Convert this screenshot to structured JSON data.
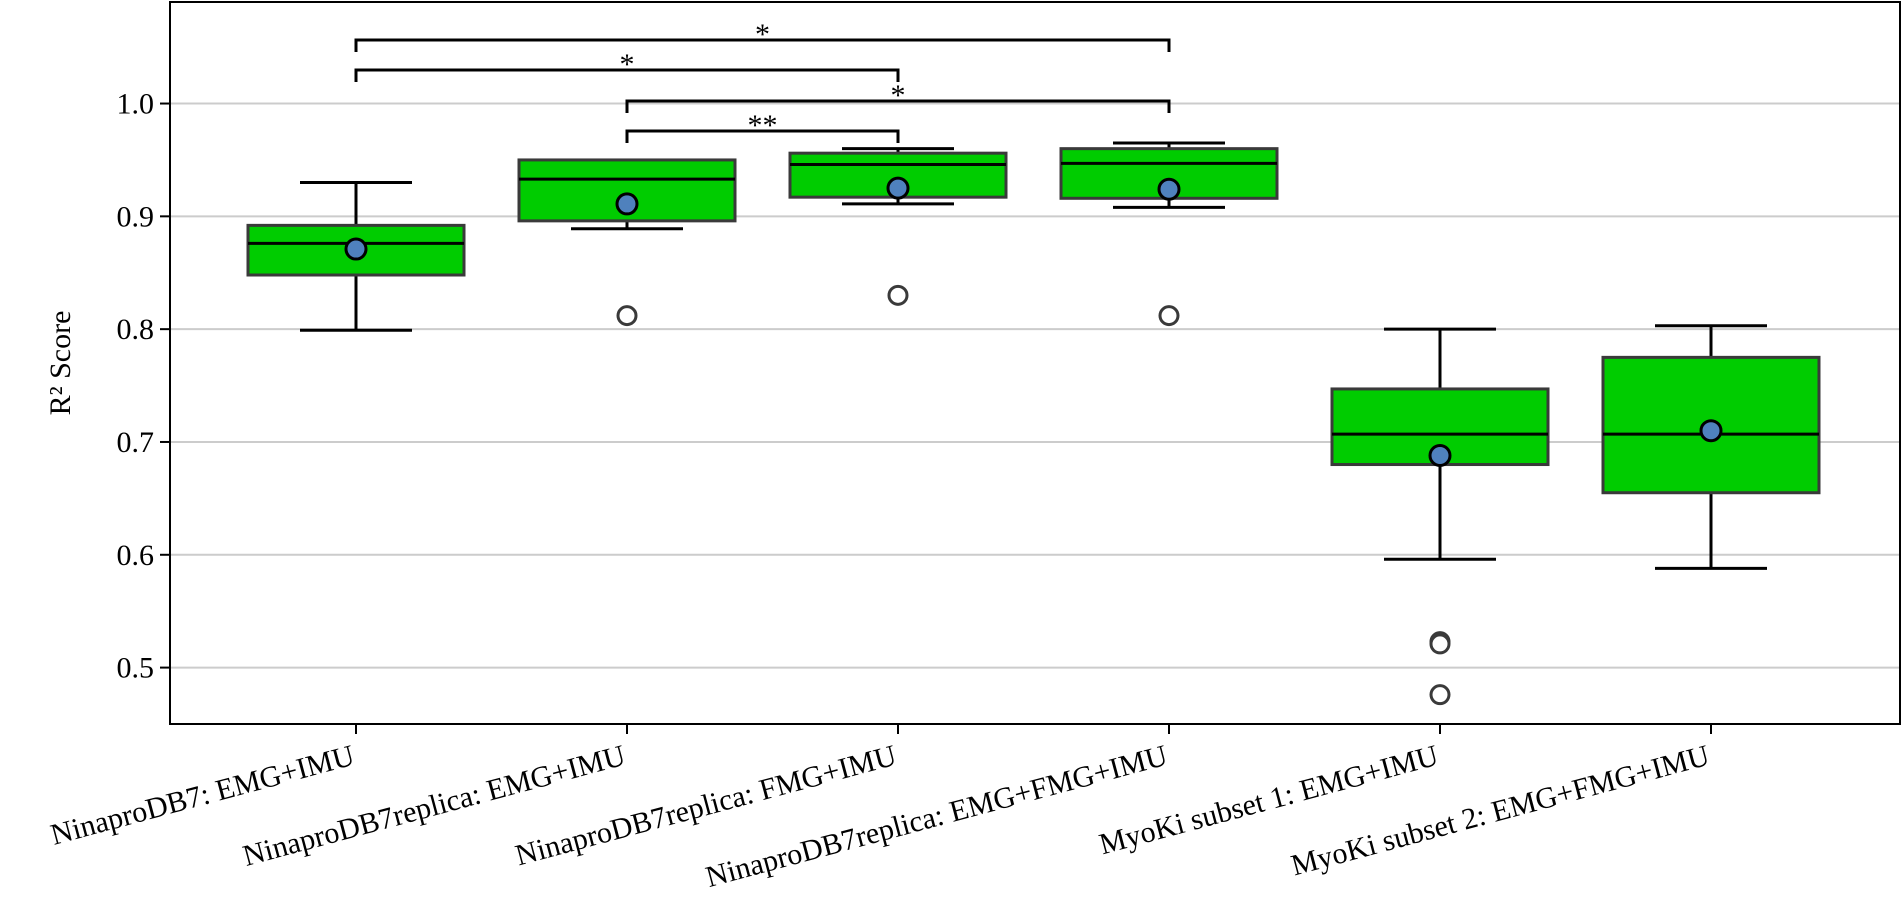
{
  "chart_data": {
    "type": "box",
    "title": "",
    "xlabel": "",
    "ylabel": "R² Score",
    "ylim": [
      0.45,
      1.09
    ],
    "yticks": [
      "0.5",
      "0.6",
      "0.7",
      "0.8",
      "0.9",
      "1.0"
    ],
    "grid": "horizontal",
    "categories": [
      "NinaproDB7: EMG+IMU",
      "NinaproDB7replica: EMG+IMU",
      "NinaproDB7replica: FMG+IMU",
      "NinaproDB7replica: EMG+FMG+IMU",
      "MyoKi subset 1: EMG+IMU",
      "MyoKi subset 2: EMG+FMG+IMU"
    ],
    "boxes": [
      {
        "whisker_low": 0.799,
        "q1": 0.848,
        "median": 0.876,
        "q3": 0.892,
        "whisker_high": 0.93,
        "mean": 0.871,
        "outliers": []
      },
      {
        "whisker_low": 0.889,
        "q1": 0.896,
        "median": 0.933,
        "q3": 0.95,
        "whisker_high": 0.95,
        "mean": 0.911,
        "outliers": [
          0.812
        ]
      },
      {
        "whisker_low": 0.911,
        "q1": 0.917,
        "median": 0.946,
        "q3": 0.956,
        "whisker_high": 0.96,
        "mean": 0.925,
        "outliers": [
          0.83
        ]
      },
      {
        "whisker_low": 0.908,
        "q1": 0.916,
        "median": 0.947,
        "q3": 0.96,
        "whisker_high": 0.965,
        "mean": 0.924,
        "outliers": [
          0.812
        ]
      },
      {
        "whisker_low": 0.596,
        "q1": 0.68,
        "median": 0.707,
        "q3": 0.747,
        "whisker_high": 0.8,
        "mean": 0.688,
        "outliers": [
          0.523,
          0.521,
          0.476
        ]
      },
      {
        "whisker_low": 0.588,
        "q1": 0.655,
        "median": 0.707,
        "q3": 0.775,
        "whisker_high": 0.803,
        "mean": 0.71,
        "outliers": []
      }
    ],
    "significance": [
      {
        "from": 0,
        "to": 3,
        "label": "*"
      },
      {
        "from": 0,
        "to": 2,
        "label": "*"
      },
      {
        "from": 1,
        "to": 3,
        "label": "*"
      },
      {
        "from": 1,
        "to": 2,
        "label": "**"
      }
    ],
    "colors": {
      "box_fill": "#00cc00",
      "box_edge": "#3a3a3a",
      "mean_marker": "#4f81bd",
      "outlier_edge": "#3a3a3a",
      "grid": "#cccccc"
    }
  }
}
